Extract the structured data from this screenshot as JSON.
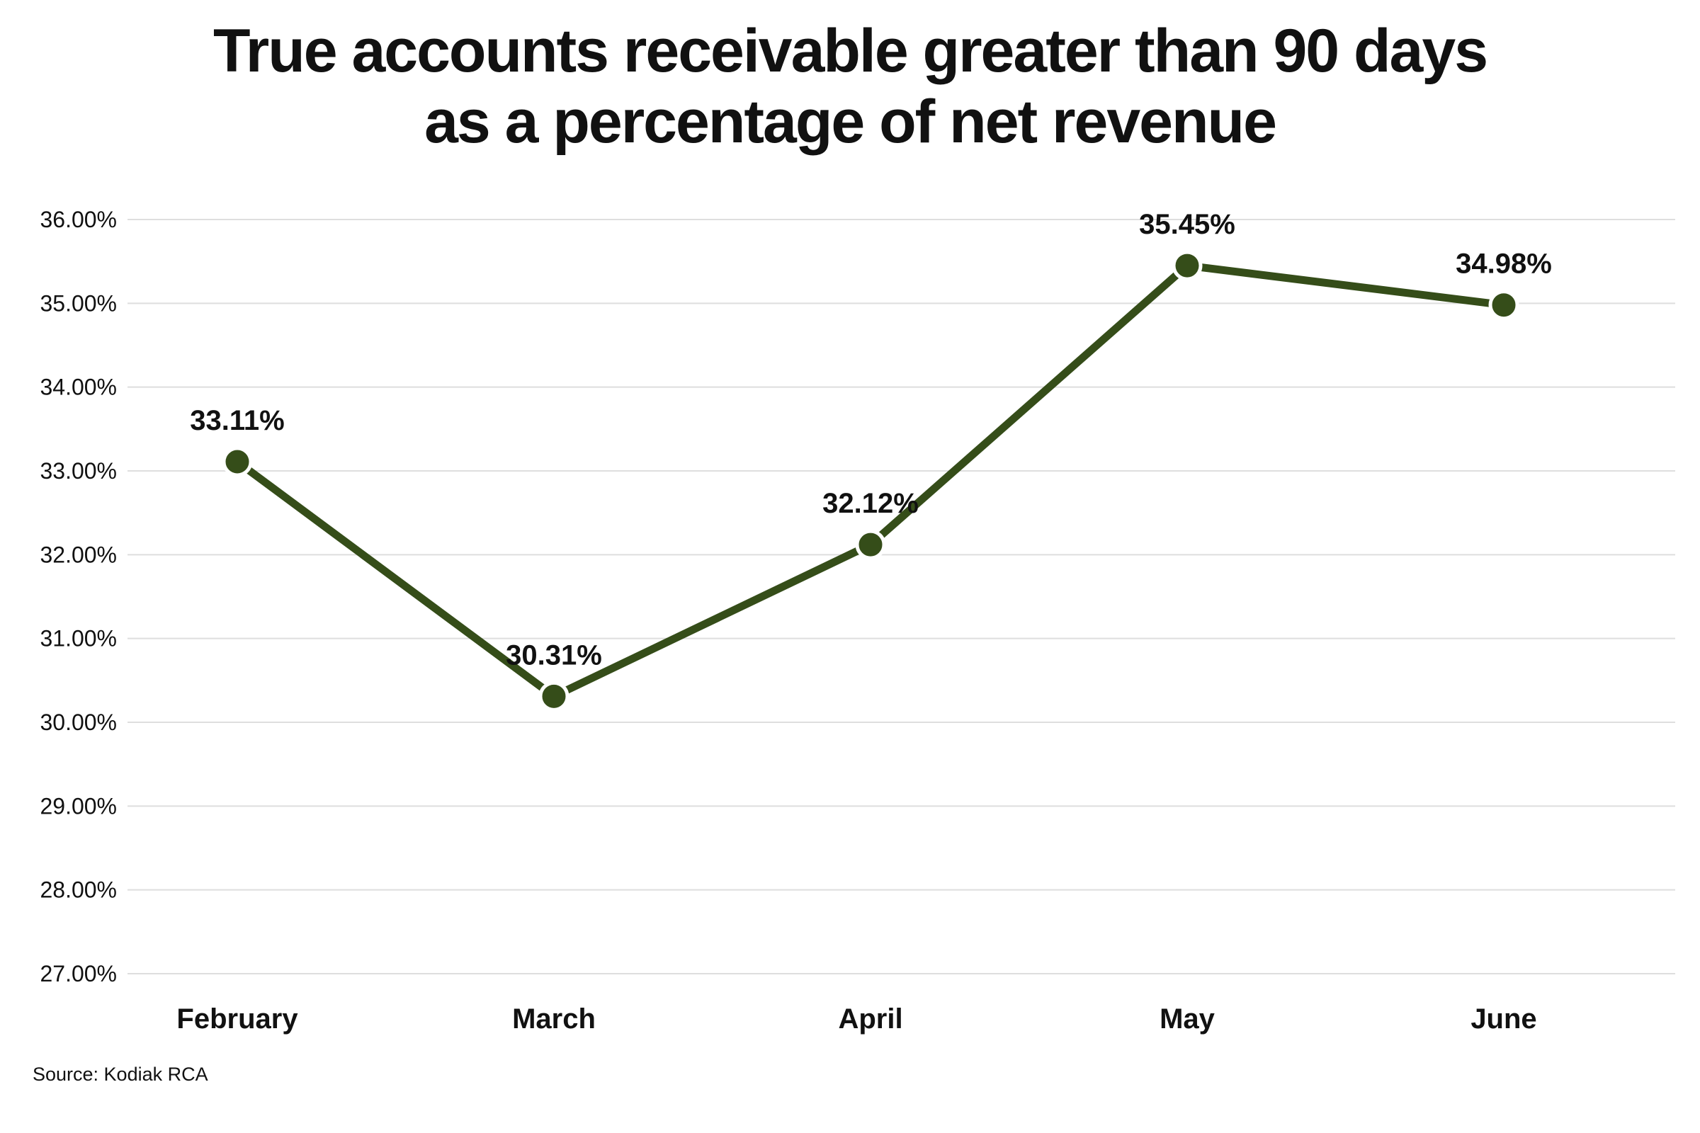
{
  "chart_data": {
    "type": "line",
    "title": [
      "True accounts receivable greater than 90 days",
      "as a percentage of net revenue"
    ],
    "categories": [
      "February",
      "March",
      "April",
      "May",
      "June"
    ],
    "series": [
      {
        "values": [
          33.11,
          30.31,
          32.12,
          35.45,
          34.98
        ]
      }
    ],
    "data_labels": [
      "33.11%",
      "30.31%",
      "32.12%",
      "35.45%",
      "34.98%"
    ],
    "ylim": [
      27,
      36
    ],
    "yticks": [
      27,
      28,
      29,
      30,
      31,
      32,
      33,
      34,
      35,
      36
    ],
    "ytick_labels": [
      "27.00%",
      "28.00%",
      "29.00%",
      "30.00%",
      "31.00%",
      "32.00%",
      "33.00%",
      "34.00%",
      "35.00%",
      "36.00%"
    ],
    "xlabel": "",
    "ylabel": "",
    "grid": true,
    "legend": "none"
  },
  "colors": {
    "series": "#354d19",
    "gridline": "#dedede",
    "text": "#111111",
    "background": "#ffffff"
  },
  "source": "Source: Kodiak RCA"
}
